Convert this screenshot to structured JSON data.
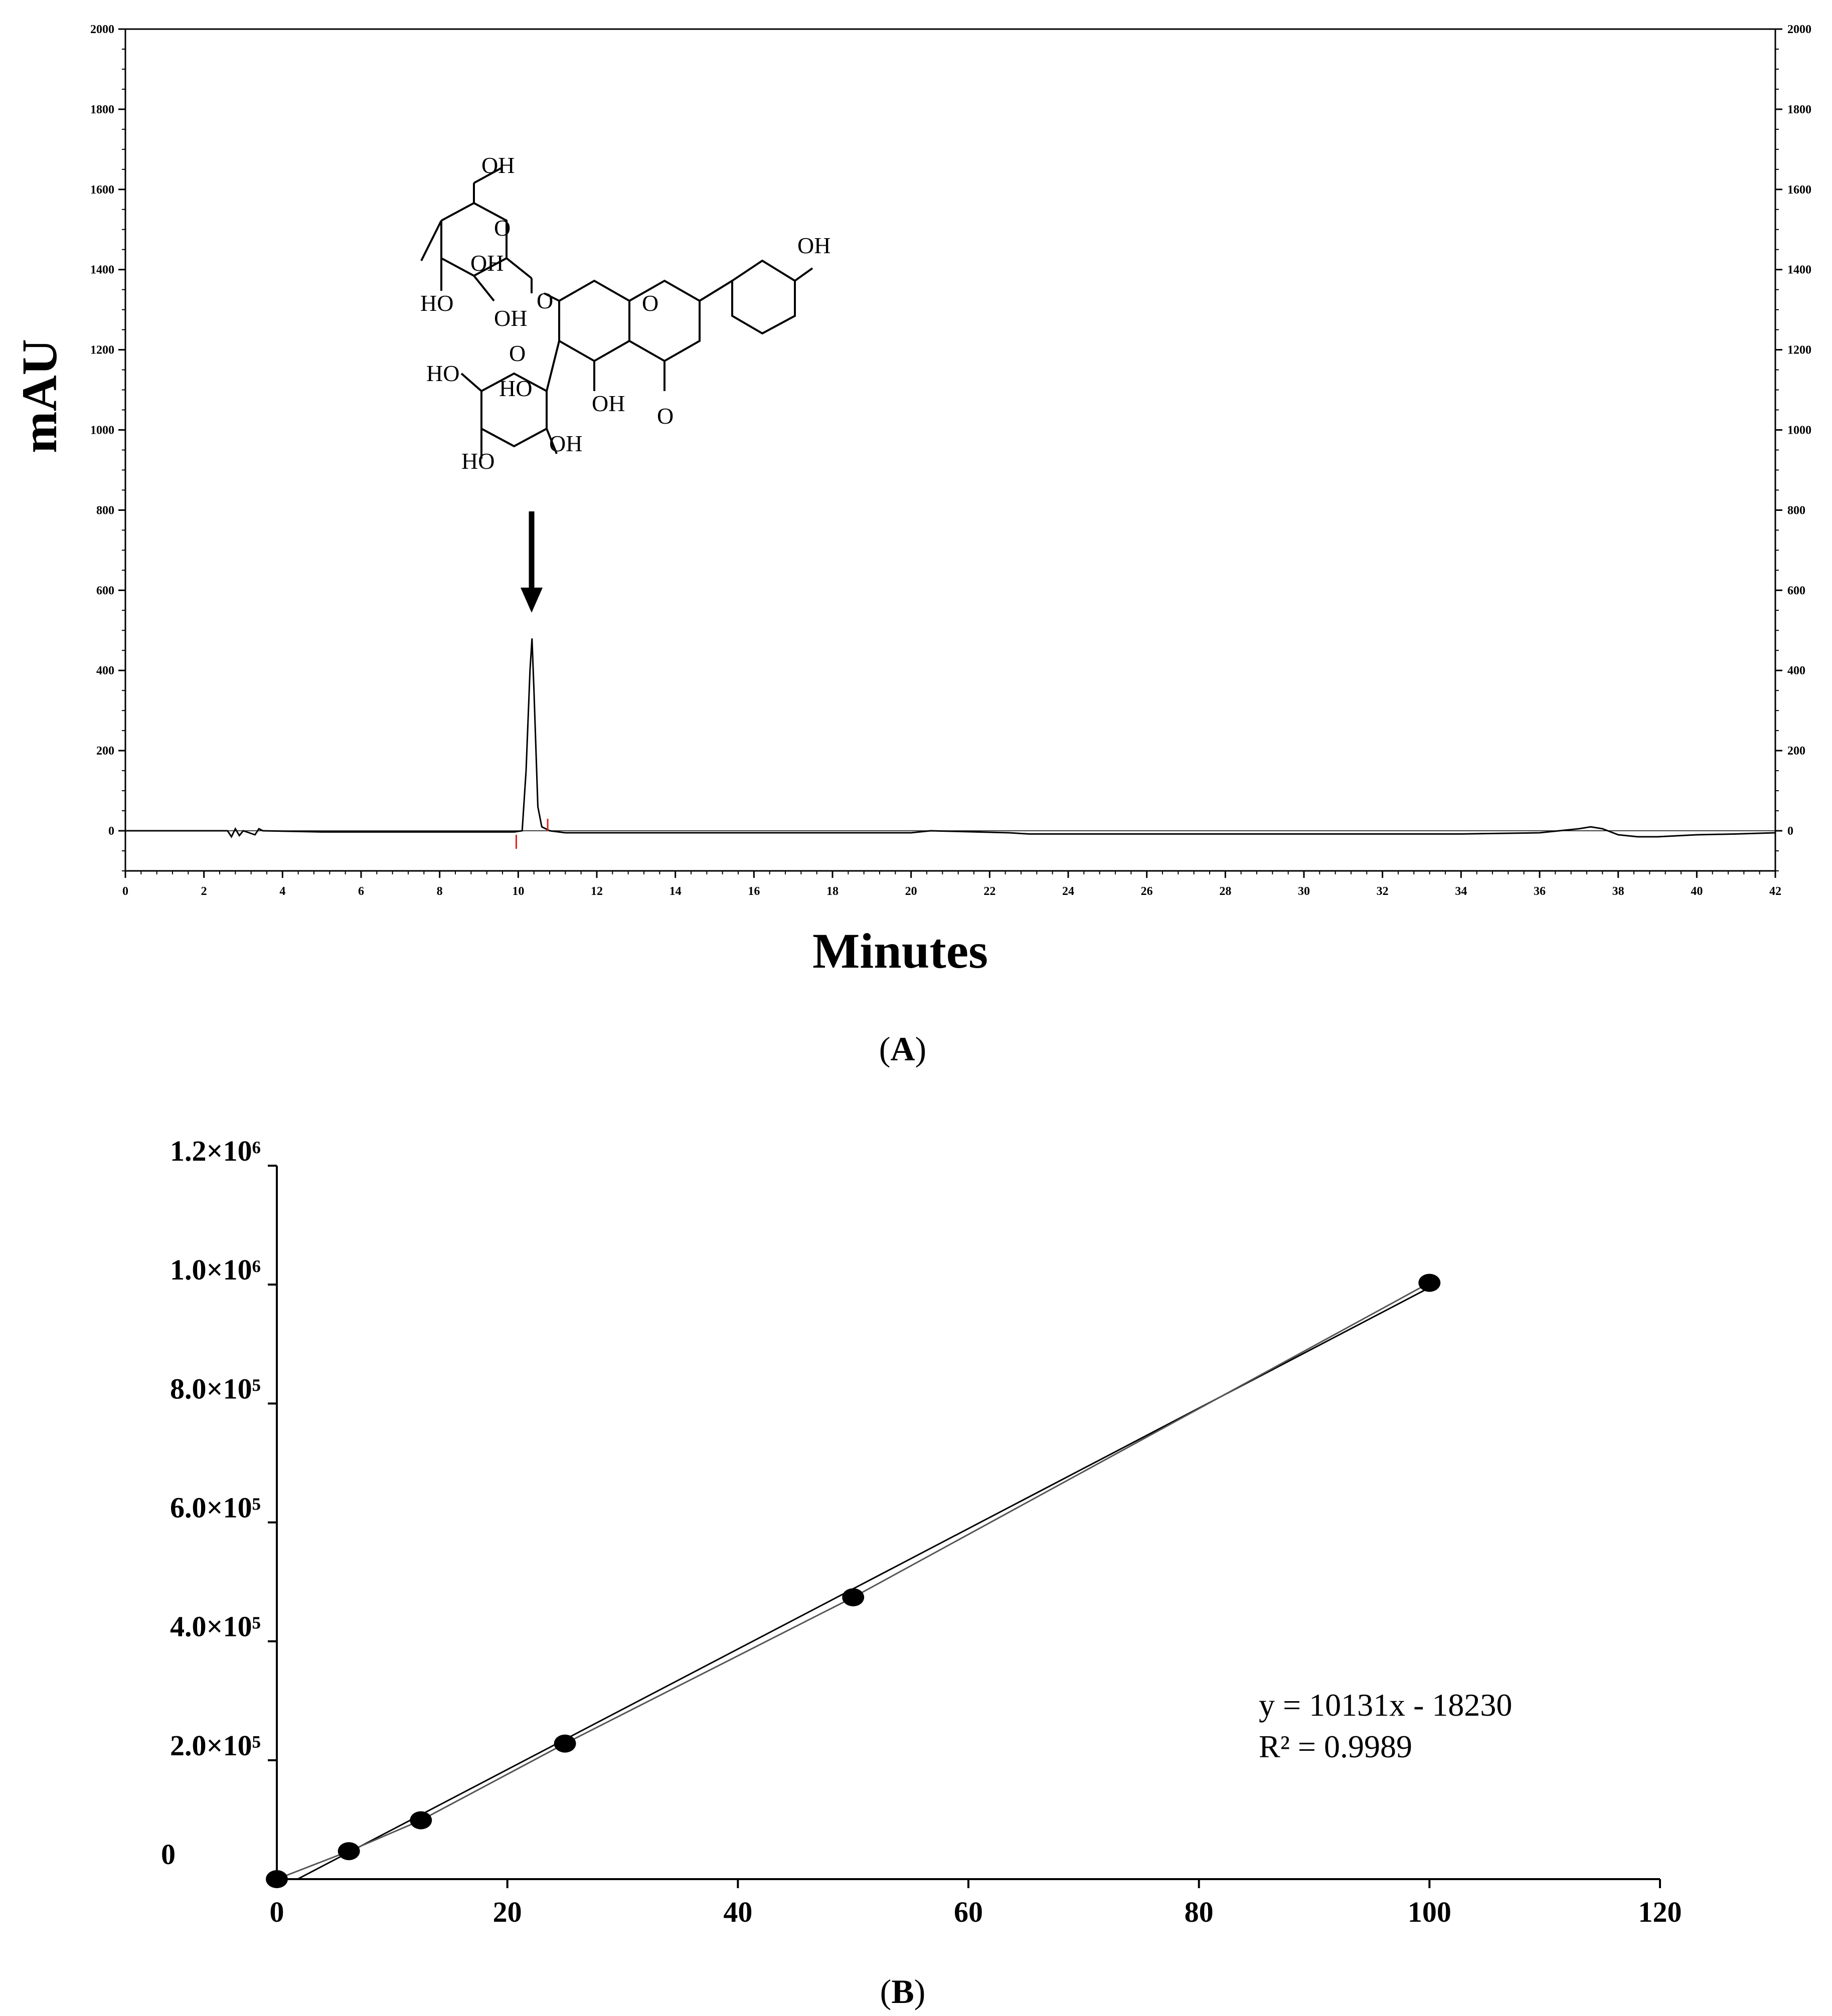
{
  "chart_data": [
    {
      "type": "line",
      "panel_label": "A",
      "xlabel": "Minutes",
      "ylabel": "mAU",
      "xlim": [
        0,
        42
      ],
      "ylim": [
        -100,
        2000
      ],
      "x_ticks": [
        "0",
        "2",
        "4",
        "6",
        "8",
        "10",
        "12",
        "14",
        "16",
        "18",
        "20",
        "22",
        "24",
        "26",
        "28",
        "30",
        "32",
        "34",
        "36",
        "38",
        "40",
        "42"
      ],
      "y_ticks": [
        "0",
        "200",
        "400",
        "600",
        "800",
        "1000",
        "1200",
        "1400",
        "1600",
        "1800",
        "2000"
      ],
      "right_axis_ticks": [
        "0",
        "200",
        "400",
        "600",
        "800",
        "1000",
        "1200",
        "1400",
        "1600",
        "1800",
        "2000"
      ],
      "grid": false,
      "series": [
        {
          "x": [
            0,
            2.6,
            2.7,
            2.8,
            2.9,
            3.0,
            3.3,
            3.4,
            3.5,
            5.0,
            9.9,
            10.1,
            10.2,
            10.3,
            10.35,
            10.4,
            10.5,
            10.6,
            10.8,
            11.2,
            12.0,
            20.0,
            20.5,
            22.5,
            23.0,
            24.0,
            26.0,
            28.0,
            30.0,
            32.0,
            34.0,
            36.0,
            36.5,
            37.0,
            37.3,
            37.6,
            38.0,
            38.5,
            39.0,
            40.0,
            41.0,
            42.0
          ],
          "y": [
            0,
            0,
            -15,
            5,
            -12,
            0,
            -10,
            5,
            0,
            -3,
            -3,
            0,
            150,
            400,
            480,
            350,
            60,
            10,
            0,
            -5,
            -5,
            -5,
            0,
            -5,
            -8,
            -8,
            -8,
            -8,
            -8,
            -8,
            -8,
            -5,
            0,
            5,
            10,
            5,
            -10,
            -15,
            -15,
            -10,
            -8,
            -5
          ]
        }
      ],
      "integration_marks_x": [
        9.95,
        10.75
      ],
      "annotation": "structure with arrow pointing at peak",
      "structure_labels": {
        "oh_top": "OH",
        "o_ring1": "O",
        "oh_ring1a": "OH",
        "ho_ring1": "HO",
        "oh_ring1b": "OH",
        "o_link": "O",
        "o_chromone": "O",
        "oh_phenol": "OH",
        "ho_ring2": "HO",
        "o_ring2": "O",
        "ho_ring2b": "HO",
        "oh_ring2": "OH",
        "ho_ring2c": "HO",
        "oh_5": "OH",
        "o_keto": "O"
      },
      "colors": {
        "trace": "#000000",
        "marks": "#e02020"
      }
    },
    {
      "type": "scatter",
      "panel_label": "B",
      "xlim": [
        0,
        120
      ],
      "ylim": [
        0,
        1200000
      ],
      "x_ticks": [
        "0",
        "20",
        "40",
        "60",
        "80",
        "100",
        "120"
      ],
      "y_ticks": [
        "0",
        "2.0×10⁵",
        "4.0×10⁵",
        "6.0×10⁵",
        "8.0×10⁵",
        "1.0×10⁶",
        "1.2×10⁶"
      ],
      "grid": false,
      "points": {
        "x": [
          0,
          6.25,
          12.5,
          25,
          50,
          100
        ],
        "y": [
          0,
          47000,
          99000,
          228000,
          474000,
          1003000
        ]
      },
      "trendline": {
        "slope": 10131,
        "intercept": -18230
      },
      "equation_text": "y = 10131x - 18230",
      "r2_text": "R² = 0.9989"
    }
  ],
  "captions": {
    "a": "A",
    "b": "B"
  }
}
